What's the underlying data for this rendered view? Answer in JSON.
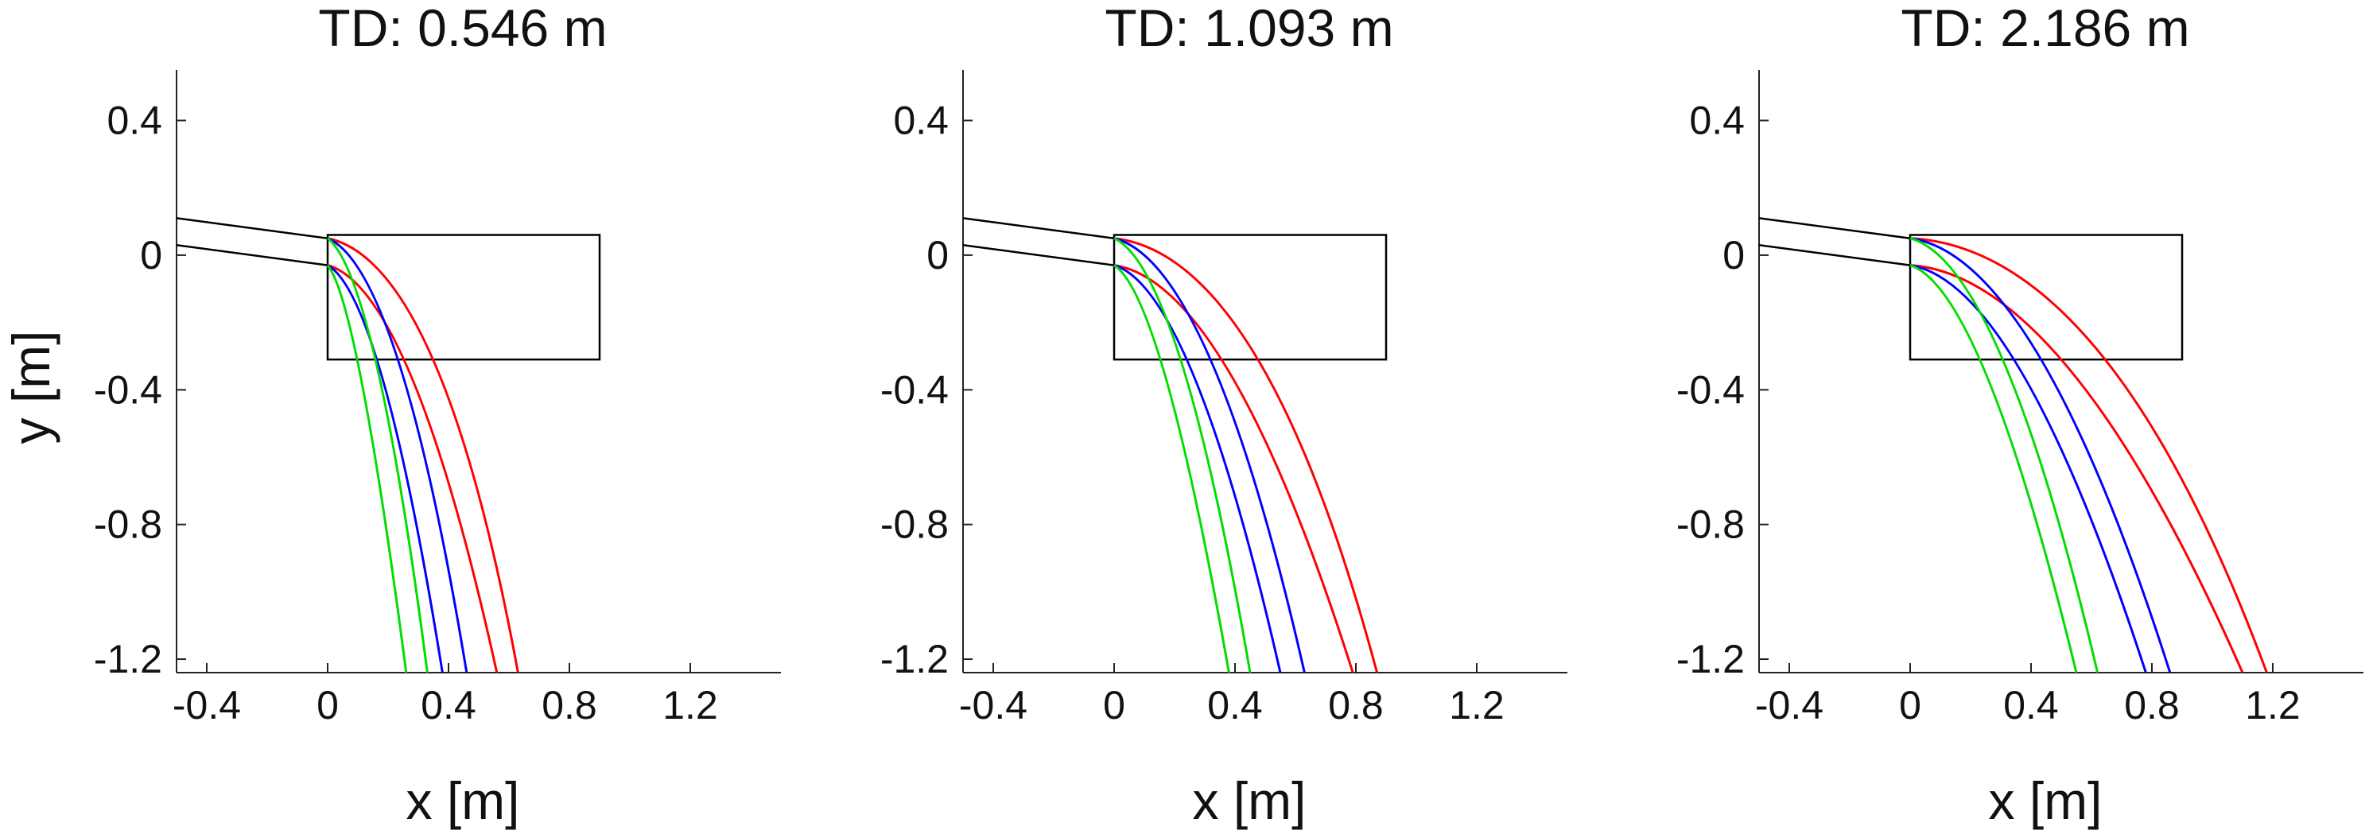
{
  "chart_data": [
    {
      "type": "line",
      "title": "TD: 0.546 m",
      "xlabel": "x [m]",
      "ylabel": "y [m]",
      "xlim": [
        -0.5,
        1.5
      ],
      "ylim": [
        -1.24,
        0.55
      ],
      "xticks": [
        -0.4,
        0,
        0.4,
        0.8,
        1.2
      ],
      "xtick_labels": [
        "-0.4",
        "0",
        "0.4",
        "0.8",
        "1.2"
      ],
      "yticks": [
        0.4,
        0,
        -0.4,
        -0.8,
        -1.2
      ],
      "ytick_labels": [
        "0.4",
        "0",
        "-0.4",
        "-0.8",
        "-1.2"
      ],
      "grid": false,
      "jet_lines": [
        {
          "color": "#000000",
          "x": [
            -0.5,
            0.0
          ],
          "y": [
            0.11,
            0.05
          ]
        },
        {
          "color": "#000000",
          "x": [
            -0.5,
            0.0
          ],
          "y": [
            0.03,
            -0.03
          ]
        }
      ],
      "rectangle": {
        "x": [
          0.0,
          0.9
        ],
        "y": [
          -0.31,
          0.06
        ],
        "color": "#000000"
      },
      "series": [
        {
          "color": "#ff0000",
          "start": [
            0.0,
            0.05
          ],
          "end": [
            0.63,
            -1.24
          ],
          "ctrl": [
            0.38,
            -0.02
          ]
        },
        {
          "color": "#ff0000",
          "start": [
            0.0,
            -0.03
          ],
          "end": [
            0.56,
            -1.24
          ],
          "ctrl": [
            0.28,
            -0.1
          ]
        },
        {
          "color": "#0000ff",
          "start": [
            0.0,
            0.05
          ],
          "end": [
            0.46,
            -1.24
          ],
          "ctrl": [
            0.24,
            -0.04
          ]
        },
        {
          "color": "#0000ff",
          "start": [
            0.0,
            -0.03
          ],
          "end": [
            0.38,
            -1.24
          ],
          "ctrl": [
            0.18,
            -0.12
          ]
        },
        {
          "color": "#00dd00",
          "start": [
            0.0,
            0.05
          ],
          "end": [
            0.33,
            -1.24
          ],
          "ctrl": [
            0.16,
            -0.06
          ]
        },
        {
          "color": "#00dd00",
          "start": [
            0.0,
            -0.03
          ],
          "end": [
            0.26,
            -1.24
          ],
          "ctrl": [
            0.1,
            -0.14
          ]
        }
      ]
    },
    {
      "type": "line",
      "title": "TD: 1.093 m",
      "xlabel": "x [m]",
      "ylabel": "",
      "xlim": [
        -0.5,
        1.5
      ],
      "ylim": [
        -1.24,
        0.55
      ],
      "xticks": [
        -0.4,
        0,
        0.4,
        0.8,
        1.2
      ],
      "xtick_labels": [
        "-0.4",
        "0",
        "0.4",
        "0.8",
        "1.2"
      ],
      "yticks": [
        0.4,
        0,
        -0.4,
        -0.8,
        -1.2
      ],
      "ytick_labels": [
        "0.4",
        "0",
        "-0.4",
        "-0.8",
        "-1.2"
      ],
      "grid": false,
      "jet_lines": [
        {
          "color": "#000000",
          "x": [
            -0.5,
            0.0
          ],
          "y": [
            0.11,
            0.05
          ]
        },
        {
          "color": "#000000",
          "x": [
            -0.5,
            0.0
          ],
          "y": [
            0.03,
            -0.03
          ]
        }
      ],
      "rectangle": {
        "x": [
          0.0,
          0.9
        ],
        "y": [
          -0.31,
          0.06
        ],
        "color": "#000000"
      },
      "series": [
        {
          "color": "#ff0000",
          "start": [
            0.0,
            0.05
          ],
          "end": [
            0.87,
            -1.24
          ],
          "ctrl": [
            0.5,
            0.0
          ]
        },
        {
          "color": "#ff0000",
          "start": [
            0.0,
            -0.03
          ],
          "end": [
            0.79,
            -1.24
          ],
          "ctrl": [
            0.38,
            -0.08
          ]
        },
        {
          "color": "#0000ff",
          "start": [
            0.0,
            0.05
          ],
          "end": [
            0.63,
            -1.24
          ],
          "ctrl": [
            0.32,
            -0.02
          ]
        },
        {
          "color": "#0000ff",
          "start": [
            0.0,
            -0.03
          ],
          "end": [
            0.55,
            -1.24
          ],
          "ctrl": [
            0.26,
            -0.1
          ]
        },
        {
          "color": "#00dd00",
          "start": [
            0.0,
            0.05
          ],
          "end": [
            0.45,
            -1.24
          ],
          "ctrl": [
            0.22,
            -0.04
          ]
        },
        {
          "color": "#00dd00",
          "start": [
            0.0,
            -0.03
          ],
          "end": [
            0.38,
            -1.24
          ],
          "ctrl": [
            0.16,
            -0.12
          ]
        }
      ]
    },
    {
      "type": "line",
      "title": "TD: 2.186 m",
      "xlabel": "x [m]",
      "ylabel": "",
      "xlim": [
        -0.5,
        1.5
      ],
      "ylim": [
        -1.24,
        0.55
      ],
      "xticks": [
        -0.4,
        0,
        0.4,
        0.8,
        1.2
      ],
      "xtick_labels": [
        "-0.4",
        "0",
        "0.4",
        "0.8",
        "1.2"
      ],
      "yticks": [
        0.4,
        0,
        -0.4,
        -0.8,
        -1.2
      ],
      "ytick_labels": [
        "0.4",
        "0",
        "-0.4",
        "-0.8",
        "-1.2"
      ],
      "grid": false,
      "jet_lines": [
        {
          "color": "#000000",
          "x": [
            -0.5,
            0.0
          ],
          "y": [
            0.11,
            0.05
          ]
        },
        {
          "color": "#000000",
          "x": [
            -0.5,
            0.0
          ],
          "y": [
            0.03,
            -0.03
          ]
        }
      ],
      "rectangle": {
        "x": [
          0.0,
          0.9
        ],
        "y": [
          -0.31,
          0.06
        ],
        "color": "#000000"
      },
      "series": [
        {
          "color": "#ff0000",
          "start": [
            0.0,
            0.05
          ],
          "end": [
            1.18,
            -1.24
          ],
          "ctrl": [
            0.66,
            0.02
          ]
        },
        {
          "color": "#ff0000",
          "start": [
            0.0,
            -0.03
          ],
          "end": [
            1.1,
            -1.24
          ],
          "ctrl": [
            0.52,
            -0.06
          ]
        },
        {
          "color": "#0000ff",
          "start": [
            0.0,
            0.05
          ],
          "end": [
            0.86,
            -1.24
          ],
          "ctrl": [
            0.42,
            0.0
          ]
        },
        {
          "color": "#0000ff",
          "start": [
            0.0,
            -0.03
          ],
          "end": [
            0.78,
            -1.24
          ],
          "ctrl": [
            0.36,
            -0.08
          ]
        },
        {
          "color": "#00dd00",
          "start": [
            0.0,
            0.05
          ],
          "end": [
            0.62,
            -1.24
          ],
          "ctrl": [
            0.3,
            -0.02
          ]
        },
        {
          "color": "#00dd00",
          "start": [
            0.0,
            -0.03
          ],
          "end": [
            0.55,
            -1.24
          ],
          "ctrl": [
            0.24,
            -0.1
          ]
        }
      ]
    }
  ]
}
